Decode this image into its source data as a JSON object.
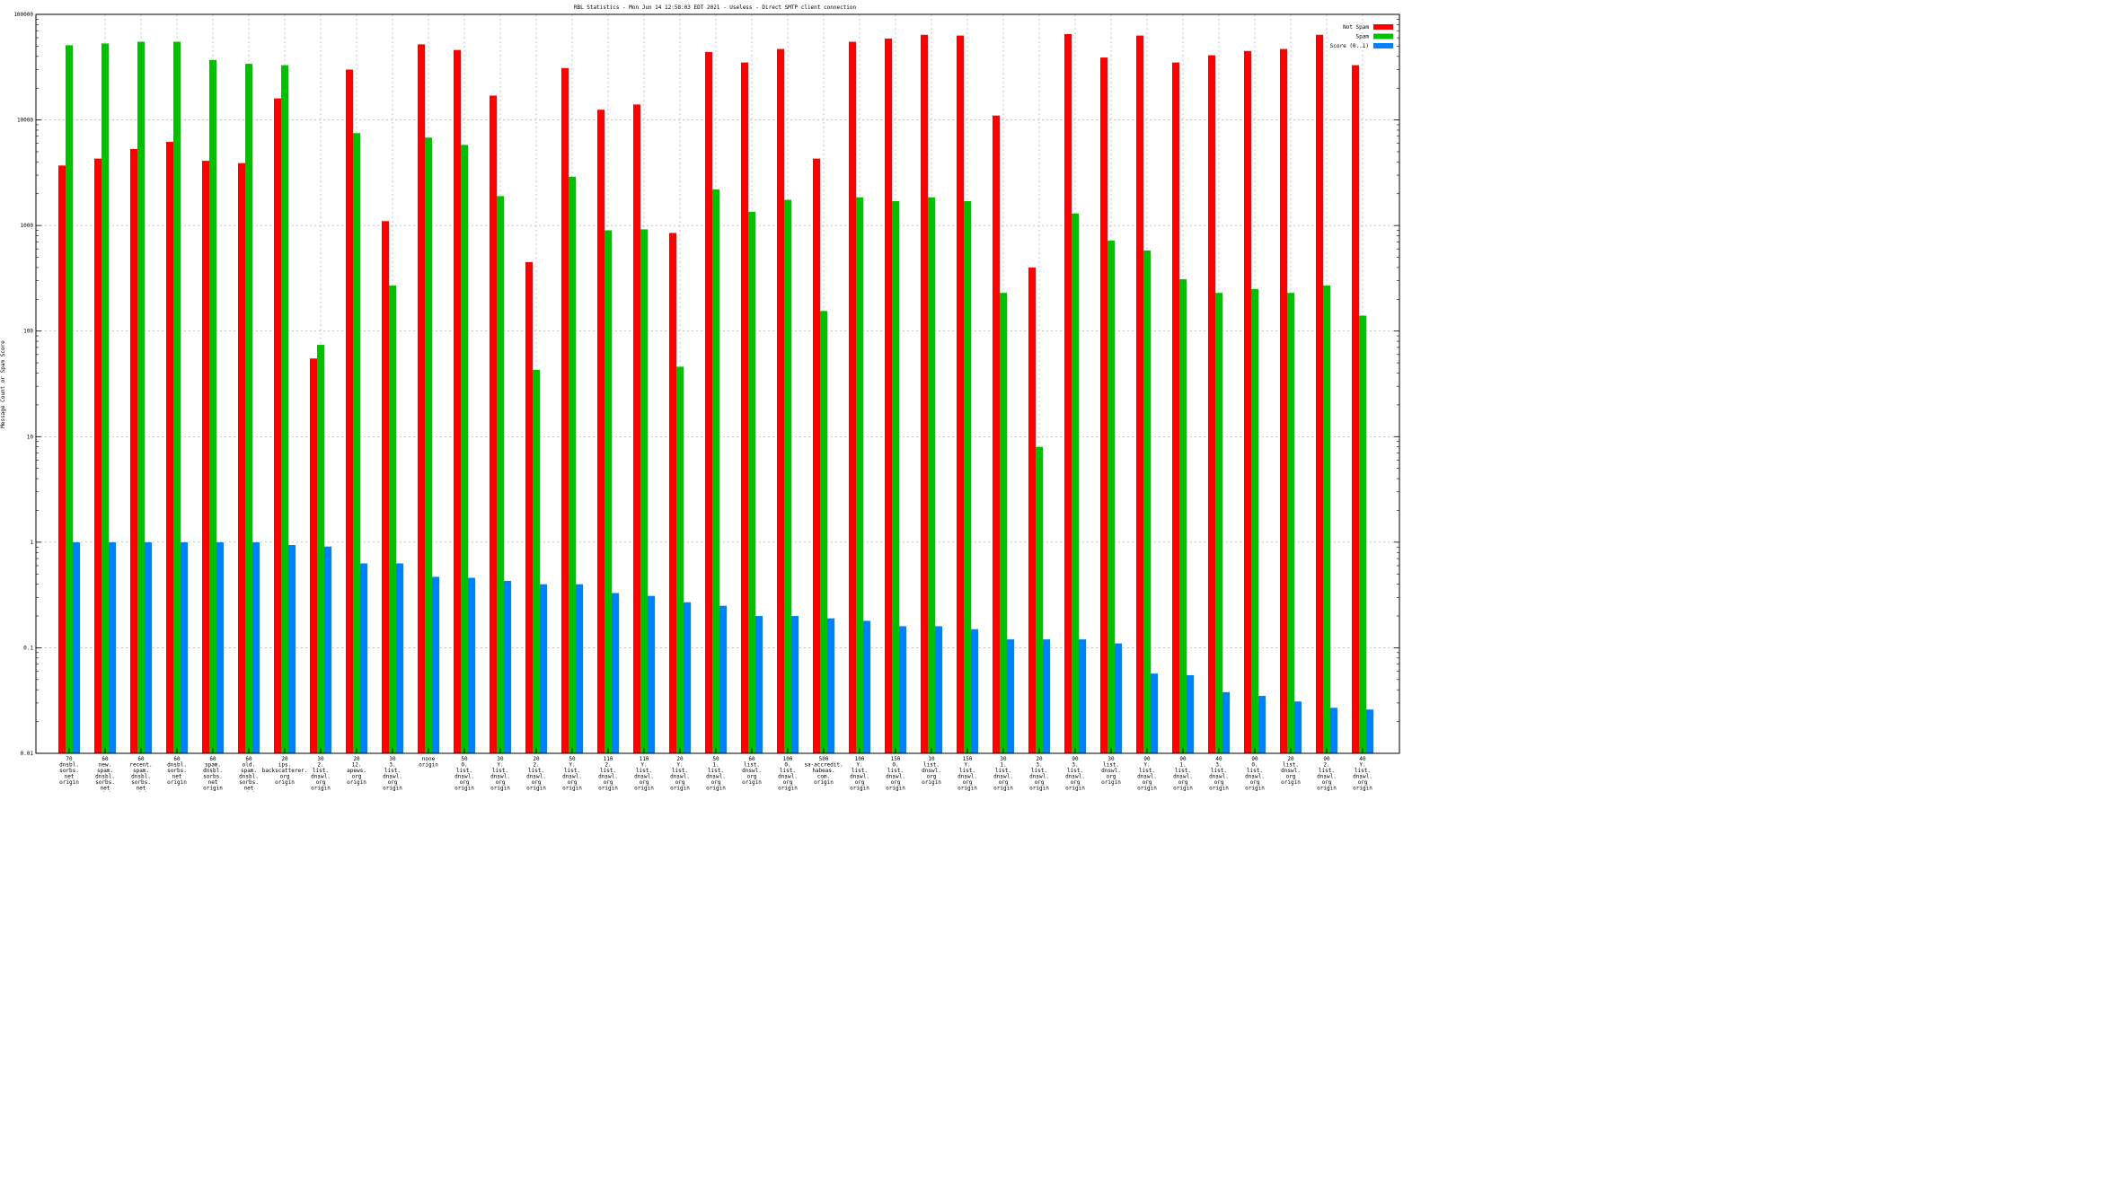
{
  "chart_data": {
    "type": "bar",
    "title": "RBL Statistics - Mon Jun 14 12:58:03 EDT 2021 - Useless - Direct SMTP client connection",
    "ylabel": "Message Count or Spam Score",
    "xlabel": "",
    "yscale": "log",
    "ylim": [
      0.01,
      100000
    ],
    "yticks": [
      "0.01",
      "0.1",
      "1",
      "10",
      "100",
      "1000",
      "10000",
      "100000"
    ],
    "grid": true,
    "legend_position": "top-right",
    "categories": [
      "70\ndnsbl.\nsorbs.\nnet\norigin",
      "60\nnew.\nspam.\ndnsbl.\nsorbs.\nnet\norigin",
      "60\nrecent.\nspam.\ndnsbl.\nsorbs.\nnet\norigin",
      "60\ndnsbl.\nsorbs.\nnet\norigin",
      "60\nspam.\ndnsbl.\nsorbs.\nnet\norigin",
      "60\nold.\nspam.\ndnsbl.\nsorbs.\nnet\norigin",
      "20\nips.\nbackscatterer.\norg\norigin",
      "30\n2.\nlist.\ndnswl.\norg\norigin",
      "20\n12.\napews.\norg\norigin",
      "30\n3.\nlist.\ndnswl.\norg\norigin",
      "none\norigin",
      "50\n0.\nlist.\ndnswl.\norg\norigin",
      "30\nY.\nlist.\ndnswl.\norg\norigin",
      "20\n2.\nlist.\ndnswl.\norg\norigin",
      "50\nY.\nlist.\ndnswl.\norg\norigin",
      "110\n2.\nlist.\ndnswl.\norg\norigin",
      "110\nY.\nlist.\ndnswl.\norg\norigin",
      "20\nY.\nlist.\ndnswl.\norg\norigin",
      "50\n1.\nlist.\ndnswl.\norg\norigin",
      "60\nlist.\ndnswl.\norg\norigin",
      "100\n0.\nlist.\ndnswl.\norg\norigin",
      "500\nsa-accredit.\nhabeas.\ncom.\norigin",
      "100\nY.\nlist.\ndnswl.\norg\norigin",
      "150\n0.\nlist.\ndnswl.\norg\norigin",
      "10\nlist.\ndnswl.\norg\norigin",
      "150\nY.\nlist.\ndnswl.\norg\norigin",
      "30\n1.\nlist.\ndnswl.\norg\norigin",
      "20\n3.\nlist.\ndnswl.\norg\norigin",
      "90\n3.\nlist.\ndnswl.\norg\norigin",
      "30\nlist.\ndnswl.\norg\norigin",
      "90\nY.\nlist.\ndnswl.\norg\norigin",
      "90\n1.\nlist.\ndnswl.\norg\norigin",
      "40\n3.\nlist.\ndnswl.\norg\norigin",
      "90\n0.\nlist.\ndnswl.\norg\norigin",
      "20\nlist.\ndnswl.\norg\norigin",
      "90\n2.\nlist.\ndnswl.\norg\norigin",
      "40\nY.\nlist.\ndnswl.\norg\norigin"
    ],
    "series": [
      {
        "name": "Not Spam",
        "color": "#ff0000",
        "values": [
          3700,
          4300,
          5300,
          6200,
          4100,
          3900,
          16000,
          55,
          30000,
          1100,
          52000,
          46000,
          17000,
          450,
          31000,
          12500,
          14000,
          850,
          44000,
          35000,
          47000,
          4300,
          55000,
          59000,
          64000,
          63000,
          11000,
          400,
          65000,
          39000,
          63000,
          35000,
          41000,
          45000,
          47000,
          64000,
          33000
        ]
      },
      {
        "name": "Spam",
        "color": "#00c000",
        "values": [
          51000,
          53000,
          55000,
          55000,
          37000,
          34000,
          33000,
          74,
          7500,
          270,
          6800,
          5800,
          1900,
          43,
          2900,
          900,
          920,
          46,
          2200,
          1350,
          1750,
          155,
          1850,
          1700,
          1850,
          1700,
          230,
          8,
          1300,
          720,
          580,
          310,
          230,
          250,
          230,
          270,
          140
        ]
      },
      {
        "name": "Score (0..1)",
        "color": "#0080ff",
        "values": [
          1.0,
          1.0,
          1.0,
          1.0,
          1.0,
          1.0,
          0.94,
          0.91,
          0.63,
          0.63,
          0.47,
          0.46,
          0.43,
          0.4,
          0.4,
          0.33,
          0.31,
          0.27,
          0.25,
          0.2,
          0.2,
          0.19,
          0.18,
          0.16,
          0.16,
          0.15,
          0.12,
          0.12,
          0.12,
          0.11,
          0.057,
          0.055,
          0.038,
          0.035,
          0.031,
          0.027,
          0.026
        ]
      }
    ]
  }
}
